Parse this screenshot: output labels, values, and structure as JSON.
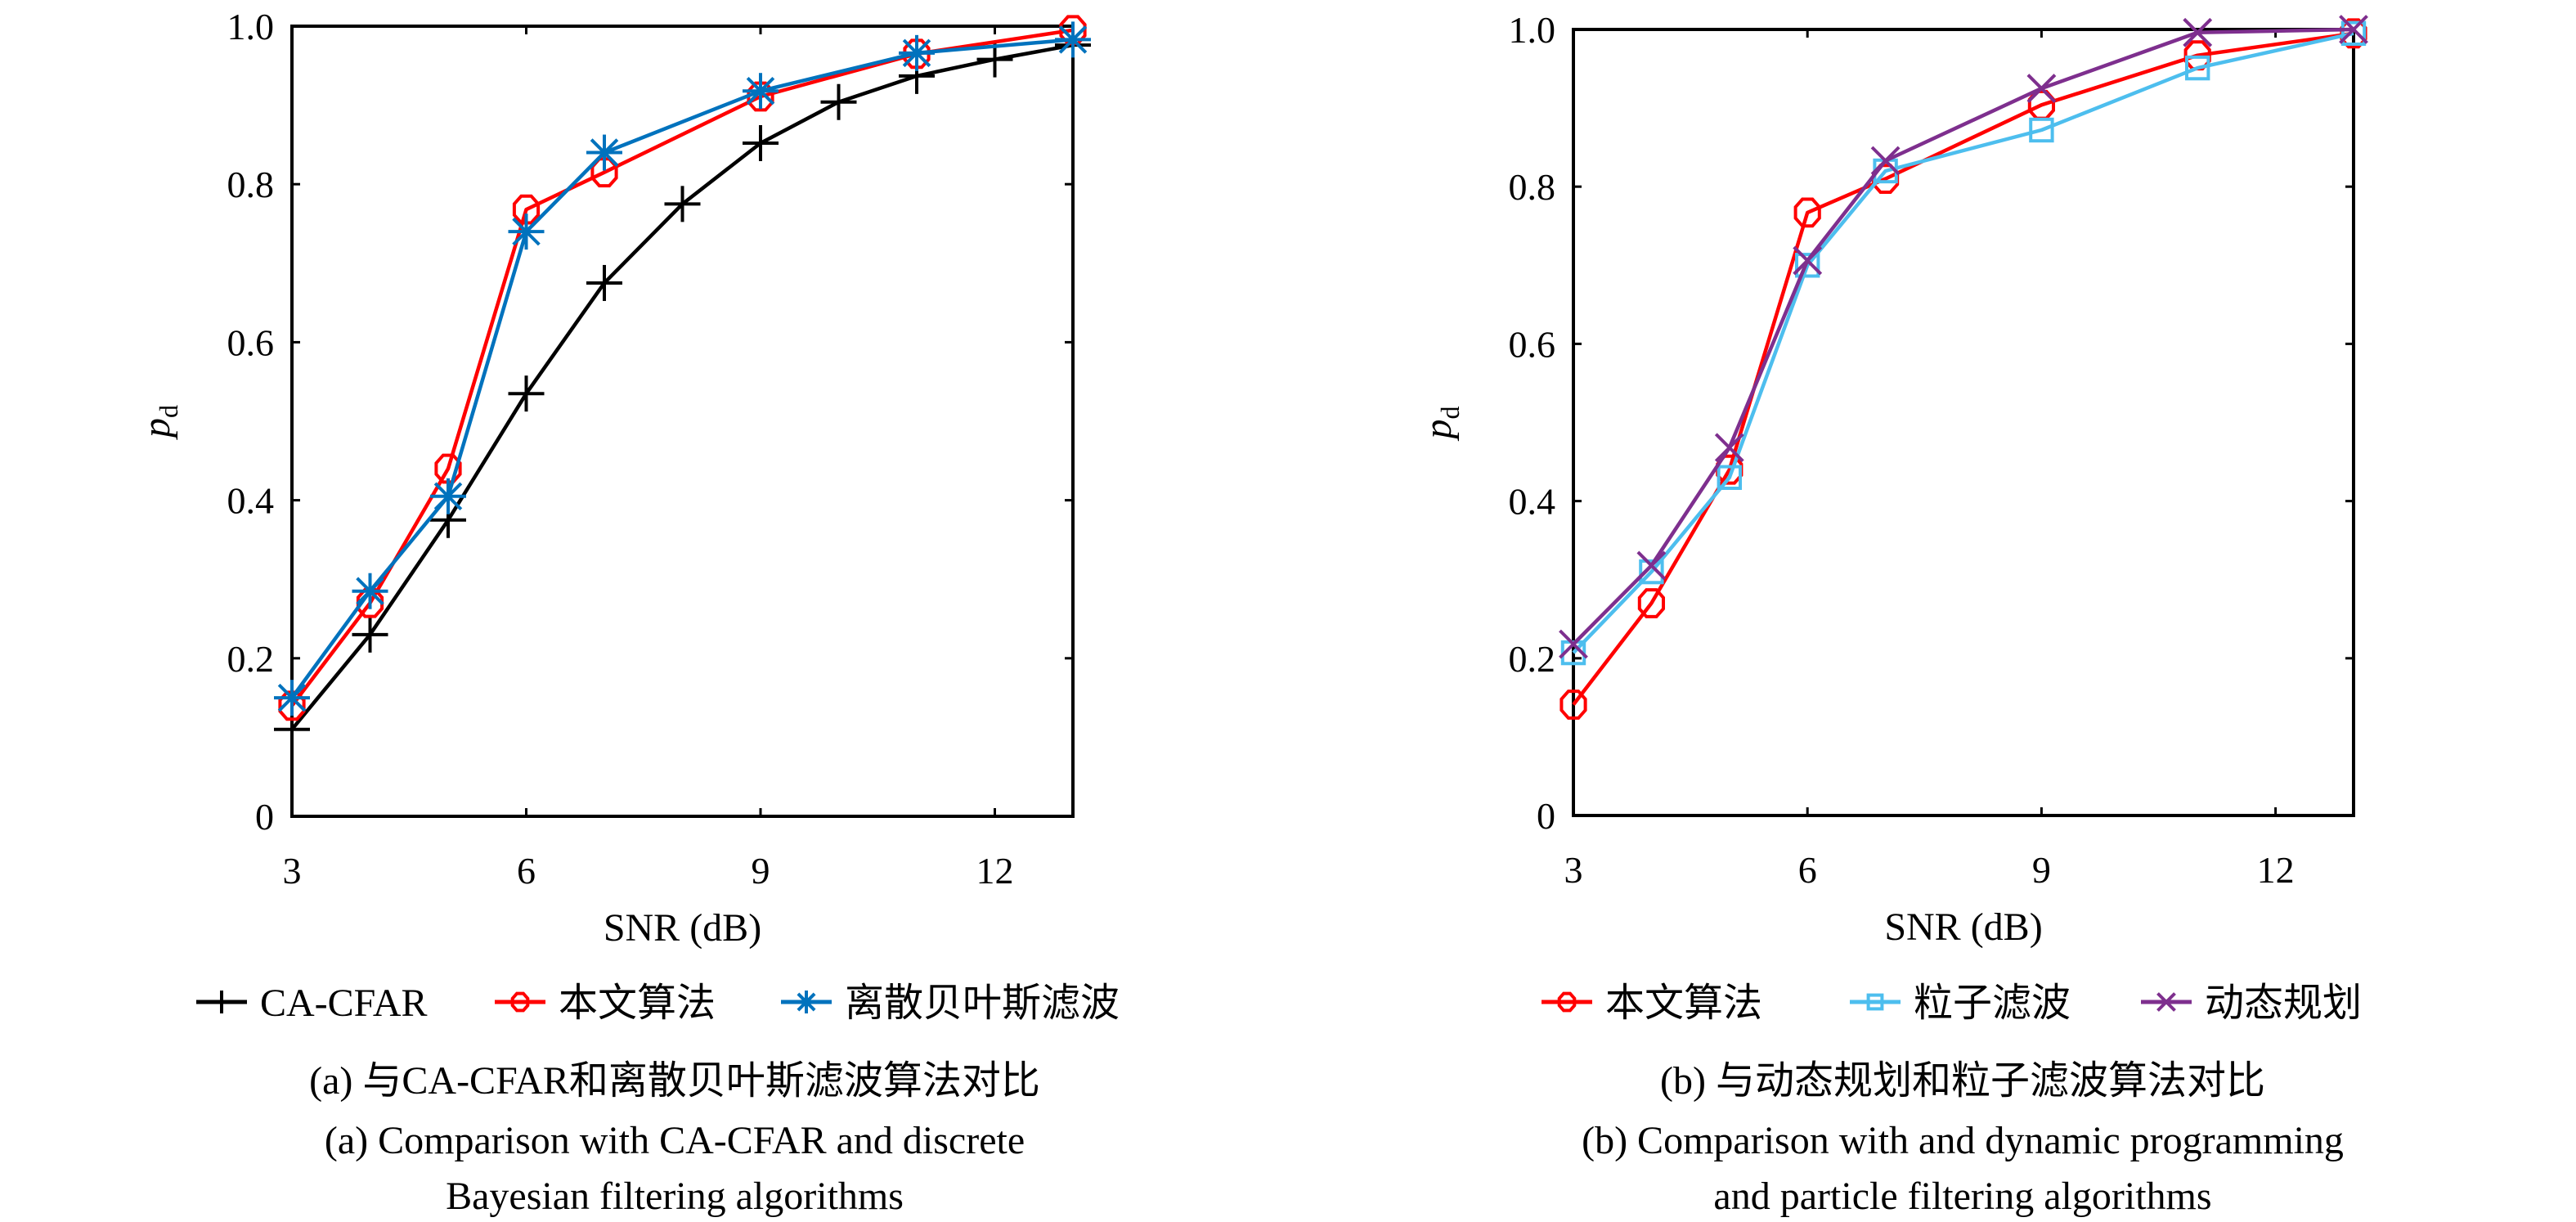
{
  "chart_data": [
    {
      "type": "line",
      "panel": "a",
      "title": "",
      "xlabel": "SNR (dB)",
      "ylabel": "p_d",
      "ylabel_main": "p",
      "ylabel_sub": "d",
      "xlim": [
        3,
        13
      ],
      "ylim": [
        0,
        1.0
      ],
      "xticks": [
        3,
        6,
        9,
        12
      ],
      "xtick_labels": [
        "3",
        "6",
        "9",
        "12"
      ],
      "yticks": [
        0,
        0.2,
        0.4,
        0.6,
        0.8,
        1.0
      ],
      "ytick_labels": [
        "0",
        "0.2",
        "0.4",
        "0.6",
        "0.8",
        "1.0"
      ],
      "grid": false,
      "legend_position": "bottom-outside",
      "series": [
        {
          "name": "CA-CFAR",
          "color": "#000000",
          "marker": "plus",
          "x": [
            3,
            4,
            5,
            6,
            7,
            8,
            9,
            10,
            11,
            12,
            13
          ],
          "y": [
            0.11,
            0.23,
            0.375,
            0.535,
            0.675,
            0.775,
            0.852,
            0.904,
            0.937,
            0.958,
            0.976
          ]
        },
        {
          "name": "本文算法",
          "color": "#FF0000",
          "marker": "circle",
          "x": [
            3,
            4,
            5,
            6,
            7,
            9,
            11,
            13
          ],
          "y": [
            0.14,
            0.27,
            0.44,
            0.768,
            0.815,
            0.911,
            0.965,
            0.995
          ]
        },
        {
          "name": "离散贝叶斯滤波",
          "color": "#0072BD",
          "marker": "asterisk",
          "x": [
            3,
            4,
            5,
            6,
            7,
            9,
            11,
            13
          ],
          "y": [
            0.15,
            0.285,
            0.405,
            0.74,
            0.84,
            0.918,
            0.966,
            0.983
          ]
        }
      ],
      "caption_cn": "(a) 与CA-CFAR和离散贝叶斯滤波算法对比",
      "caption_en_line1": "(a) Comparison with CA-CFAR and discrete",
      "caption_en_line2": "Bayesian filtering algorithms"
    },
    {
      "type": "line",
      "panel": "b",
      "title": "",
      "xlabel": "SNR (dB)",
      "ylabel": "p_d",
      "ylabel_main": "p",
      "ylabel_sub": "d",
      "xlim": [
        3,
        13
      ],
      "ylim": [
        0,
        1.0
      ],
      "xticks": [
        3,
        6,
        9,
        12
      ],
      "xtick_labels": [
        "3",
        "6",
        "9",
        "12"
      ],
      "yticks": [
        0,
        0.2,
        0.4,
        0.6,
        0.8,
        1.0
      ],
      "ytick_labels": [
        "0",
        "0.2",
        "0.4",
        "0.6",
        "0.8",
        "1.0"
      ],
      "grid": false,
      "legend_position": "bottom-outside",
      "series": [
        {
          "name": "本文算法",
          "color": "#FF0000",
          "marker": "circle",
          "x": [
            3,
            4,
            5,
            6,
            7,
            9,
            11,
            13
          ],
          "y": [
            0.141,
            0.27,
            0.44,
            0.767,
            0.81,
            0.904,
            0.967,
            0.995
          ]
        },
        {
          "name": "粒子滤波",
          "color": "#4DBEEE",
          "marker": "square",
          "x": [
            3,
            4,
            5,
            6,
            7,
            9,
            11,
            13
          ],
          "y": [
            0.207,
            0.31,
            0.43,
            0.7,
            0.82,
            0.872,
            0.951,
            0.995
          ]
        },
        {
          "name": "动态规划",
          "color": "#7E2F8E",
          "marker": "x",
          "x": [
            3,
            4,
            5,
            6,
            7,
            9,
            11,
            13
          ],
          "y": [
            0.218,
            0.318,
            0.468,
            0.706,
            0.833,
            0.925,
            0.996,
            1.0
          ]
        }
      ],
      "caption_cn": "(b) 与动态规划和粒子滤波算法对比",
      "caption_en_line1": "(b) Comparison with and dynamic programming",
      "caption_en_line2": "and particle filtering algorithms"
    }
  ]
}
